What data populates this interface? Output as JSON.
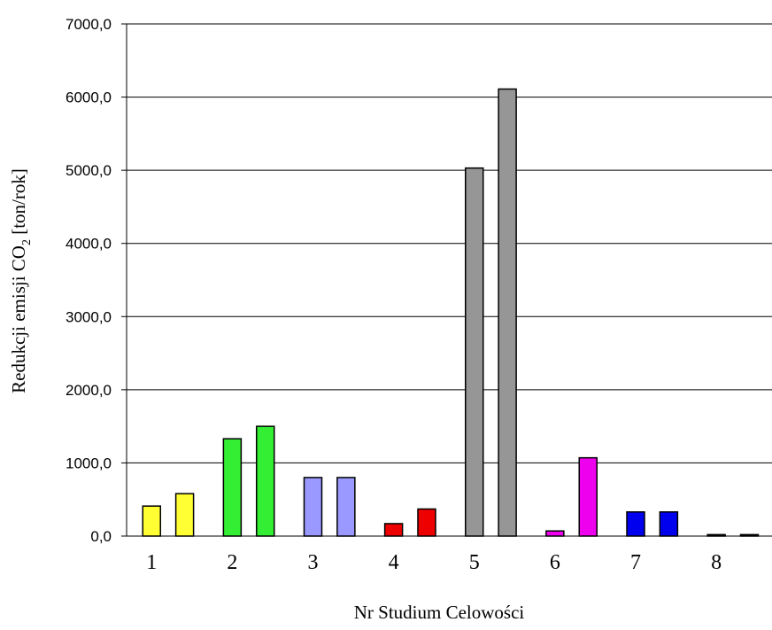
{
  "chart_data": {
    "type": "bar",
    "xlabel": "Nr Studium Celowości",
    "ylabel": {
      "prefix": "Redukcji emisji CO",
      "subscript": "2",
      "suffix": " [ton/rok]"
    },
    "ylim": [
      0,
      7000
    ],
    "yticks": [
      {
        "value": 0,
        "label": "0,0"
      },
      {
        "value": 1000,
        "label": "1000,0"
      },
      {
        "value": 2000,
        "label": "2000,0"
      },
      {
        "value": 3000,
        "label": "3000,0"
      },
      {
        "value": 4000,
        "label": "4000,0"
      },
      {
        "value": 5000,
        "label": "5000,0"
      },
      {
        "value": 6000,
        "label": "6000,0"
      },
      {
        "value": 7000,
        "label": "7000,0"
      }
    ],
    "grid": true,
    "categories": [
      "1",
      "2",
      "3",
      "4",
      "5",
      "6",
      "7",
      "8"
    ],
    "groups": [
      {
        "category": "1",
        "color": "#ffff33",
        "values": [
          410,
          580
        ]
      },
      {
        "category": "2",
        "color": "#33ee33",
        "values": [
          1330,
          1500
        ]
      },
      {
        "category": "3",
        "color": "#9999ff",
        "values": [
          800,
          800
        ]
      },
      {
        "category": "4",
        "color": "#ee0000",
        "values": [
          170,
          370
        ]
      },
      {
        "category": "5",
        "color": "#969696",
        "values": [
          5030,
          6110
        ]
      },
      {
        "category": "6",
        "color": "#ee00ee",
        "values": [
          70,
          1070
        ]
      },
      {
        "category": "7",
        "color": "#0000ee",
        "values": [
          330,
          330
        ]
      },
      {
        "category": "8",
        "color": "#000000",
        "values": [
          20,
          20
        ]
      }
    ]
  }
}
